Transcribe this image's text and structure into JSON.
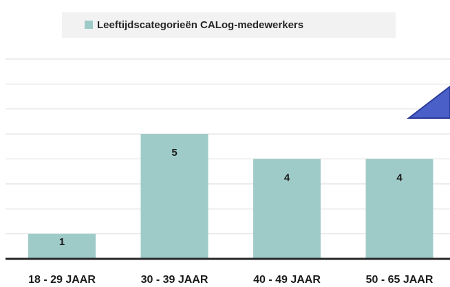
{
  "chart_data": {
    "type": "bar",
    "series": [
      {
        "name": "Leeftijdscategorieën CALog-medewerkers",
        "color": "#9ecbc8",
        "values": [
          1,
          5,
          4,
          4
        ]
      }
    ],
    "categories": [
      "18 - 29 JAAR",
      "30 - 39 JAAR",
      "40 - 49 JAAR",
      "50 - 65 JAAR"
    ],
    "ylim": [
      0,
      8
    ],
    "yticks": [
      0,
      1,
      2,
      3,
      4,
      5,
      6,
      7,
      8
    ],
    "grid": true,
    "legend": "top"
  }
}
